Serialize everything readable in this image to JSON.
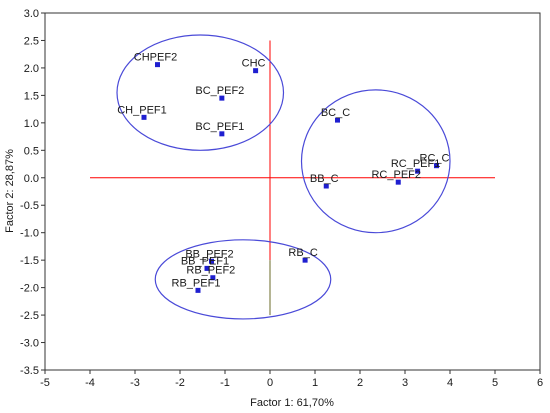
{
  "chart_data": {
    "type": "scatter",
    "xlabel": "Factor 1: 61,70%",
    "ylabel": "Factor 2: 28,87%",
    "xlim": [
      -5,
      6
    ],
    "ylim": [
      -3.5,
      3.0
    ],
    "xticks": [
      -5,
      -4,
      -3,
      -2,
      -1,
      0,
      1,
      2,
      3,
      4,
      5,
      6
    ],
    "yticks": [
      3.0,
      2.5,
      2.0,
      1.5,
      1.0,
      0.5,
      0.0,
      -0.5,
      -1.0,
      -1.5,
      -2.0,
      -2.5,
      -3.0,
      -3.5
    ],
    "grid": false,
    "points": [
      {
        "label": "CHPEF2",
        "x": -2.5,
        "y": 2.06
      },
      {
        "label": "CHC",
        "x": -0.32,
        "y": 1.95
      },
      {
        "label": "BC_PEF2",
        "x": -1.07,
        "y": 1.45
      },
      {
        "label": "CH_PEF1",
        "x": -2.8,
        "y": 1.1
      },
      {
        "label": "BC_PEF1",
        "x": -1.07,
        "y": 0.8
      },
      {
        "label": "BC_C",
        "x": 1.5,
        "y": 1.05
      },
      {
        "label": "RC_C",
        "x": 3.7,
        "y": 0.22
      },
      {
        "label": "RC_PEF1",
        "x": 3.28,
        "y": 0.12
      },
      {
        "label": "RC_PEF2",
        "x": 2.85,
        "y": -0.08
      },
      {
        "label": "BB_C",
        "x": 1.25,
        "y": -0.15
      },
      {
        "label": "RB_C",
        "x": 0.78,
        "y": -1.5
      },
      {
        "label": "BB_PEF2",
        "x": -1.3,
        "y": -1.52
      },
      {
        "label": "BB_PEF1",
        "x": -1.4,
        "y": -1.65
      },
      {
        "label": "RB_PEF2",
        "x": -1.27,
        "y": -1.82
      },
      {
        "label": "RB_PEF1",
        "x": -1.6,
        "y": -2.05
      }
    ],
    "reference_lines": {
      "x": 0,
      "y": 0,
      "color": "#ff0000"
    },
    "ellipses": [
      {
        "cx": -1.55,
        "cy": 1.55,
        "rx": 1.85,
        "ry": 1.05,
        "color": "#4a4ad8"
      },
      {
        "cx": 2.35,
        "cy": 0.3,
        "rx": 1.65,
        "ry": 1.3,
        "color": "#4a4ad8"
      },
      {
        "cx": -0.6,
        "cy": -1.85,
        "rx": 1.95,
        "ry": 0.72,
        "color": "#4a4ad8"
      }
    ],
    "point_color": "#1f1fd0"
  }
}
